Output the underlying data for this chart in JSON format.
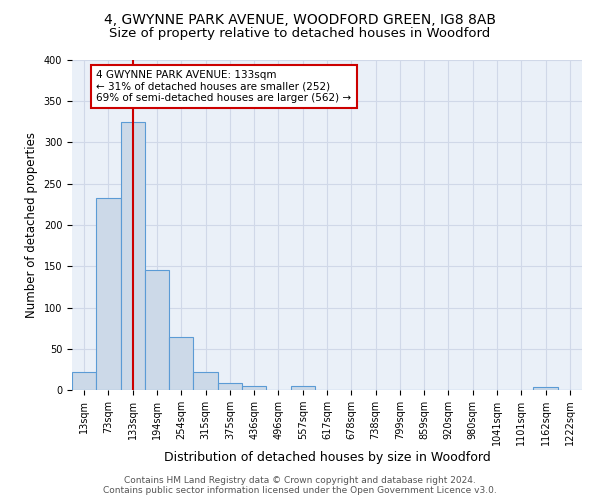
{
  "title": "4, GWYNNE PARK AVENUE, WOODFORD GREEN, IG8 8AB",
  "subtitle": "Size of property relative to detached houses in Woodford",
  "xlabel": "Distribution of detached houses by size in Woodford",
  "ylabel": "Number of detached properties",
  "bar_color": "#ccd9e8",
  "bar_edge_color": "#5b9bd5",
  "background_color": "#eaf0f8",
  "categories": [
    "13sqm",
    "73sqm",
    "133sqm",
    "194sqm",
    "254sqm",
    "315sqm",
    "375sqm",
    "436sqm",
    "496sqm",
    "557sqm",
    "617sqm",
    "678sqm",
    "738sqm",
    "799sqm",
    "859sqm",
    "920sqm",
    "980sqm",
    "1041sqm",
    "1101sqm",
    "1162sqm",
    "1222sqm"
  ],
  "values": [
    22,
    233,
    325,
    146,
    64,
    22,
    8,
    5,
    0,
    5,
    0,
    0,
    0,
    0,
    0,
    0,
    0,
    0,
    0,
    4,
    0
  ],
  "red_line_index": 2,
  "annotation_line1": "4 GWYNNE PARK AVENUE: 133sqm",
  "annotation_line2": "← 31% of detached houses are smaller (252)",
  "annotation_line3": "69% of semi-detached houses are larger (562) →",
  "annotation_box_color": "#ffffff",
  "annotation_box_edge_color": "#cc0000",
  "ylim": [
    0,
    400
  ],
  "yticks": [
    0,
    50,
    100,
    150,
    200,
    250,
    300,
    350,
    400
  ],
  "grid_color": "#d0d8e8",
  "footer_text": "Contains HM Land Registry data © Crown copyright and database right 2024.\nContains public sector information licensed under the Open Government Licence v3.0.",
  "title_fontsize": 10,
  "subtitle_fontsize": 9.5,
  "xlabel_fontsize": 9,
  "ylabel_fontsize": 8.5,
  "tick_fontsize": 7,
  "annotation_fontsize": 7.5,
  "footer_fontsize": 6.5
}
